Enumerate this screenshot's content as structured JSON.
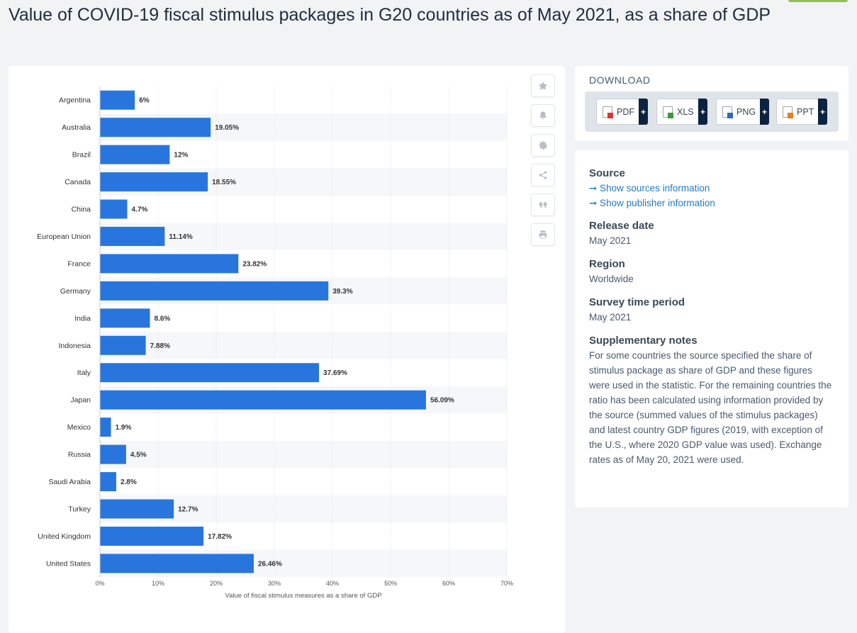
{
  "page": {
    "title": "Value of COVID-19 fiscal stimulus packages in G20 countries as of May 2021, as a share of GDP"
  },
  "toolbar": {
    "icons": [
      "star-icon",
      "bell-icon",
      "gear-icon",
      "share-icon",
      "quote-icon",
      "print-icon"
    ]
  },
  "download": {
    "title": "DOWNLOAD",
    "buttons": [
      {
        "label": "PDF",
        "color": "#d9362b"
      },
      {
        "label": "XLS",
        "color": "#3d9a3a"
      },
      {
        "label": "PNG",
        "color": "#2a6db5"
      },
      {
        "label": "PPT",
        "color": "#e5801c"
      }
    ],
    "plus": "+"
  },
  "info": {
    "source_heading": "Source",
    "link_sources": "➞ Show sources information",
    "link_publisher": "➞ Show publisher information",
    "release_heading": "Release date",
    "release_value": "May 2021",
    "region_heading": "Region",
    "region_value": "Worldwide",
    "period_heading": "Survey time period",
    "period_value": "May 2021",
    "notes_heading": "Supplementary notes",
    "notes_text": "For some countries the source specified the share of stimulus package as share of GDP and these figures were used in the statistic. For the remaining countries the ratio has been calculated using information provided by the source (summed values of the stimulus packages) and latest country GDP figures (2019, with exception of the U.S., where 2020 GDP value was used). Exchange rates as of May 20, 2021 were used."
  },
  "colors": {
    "bar": "#2876dd",
    "link": "#1f7cc7",
    "accent": "#0c2340"
  },
  "chart_data": {
    "type": "bar",
    "orientation": "horizontal",
    "categories": [
      "Argentina",
      "Australia",
      "Brazil",
      "Canada",
      "China",
      "European Union",
      "France",
      "Germany",
      "India",
      "Indonesia",
      "Italy",
      "Japan",
      "Mexico",
      "Russia",
      "Saudi Arabia",
      "Turkey",
      "United Kingdom",
      "United States"
    ],
    "values": [
      6,
      19.05,
      12,
      18.55,
      4.7,
      11.14,
      23.82,
      39.3,
      8.6,
      7.88,
      37.69,
      56.09,
      1.9,
      4.5,
      2.8,
      12.7,
      17.82,
      26.46
    ],
    "value_labels": [
      "6%",
      "19.05%",
      "12%",
      "18.55%",
      "4.7%",
      "11.14%",
      "23.82%",
      "39.3%",
      "8.6%",
      "7.88%",
      "37.69%",
      "56.09%",
      "1.9%",
      "4.5%",
      "2.8%",
      "12.7%",
      "17.82%",
      "26.46%"
    ],
    "x_ticks": [
      "0%",
      "10%",
      "20%",
      "30%",
      "40%",
      "50%",
      "60%",
      "70%"
    ],
    "xlim": [
      0,
      70
    ],
    "xlabel": "Value of fiscal stimulus measures as a share of GDP",
    "ylabel": "",
    "grid": true,
    "legend": "none"
  }
}
